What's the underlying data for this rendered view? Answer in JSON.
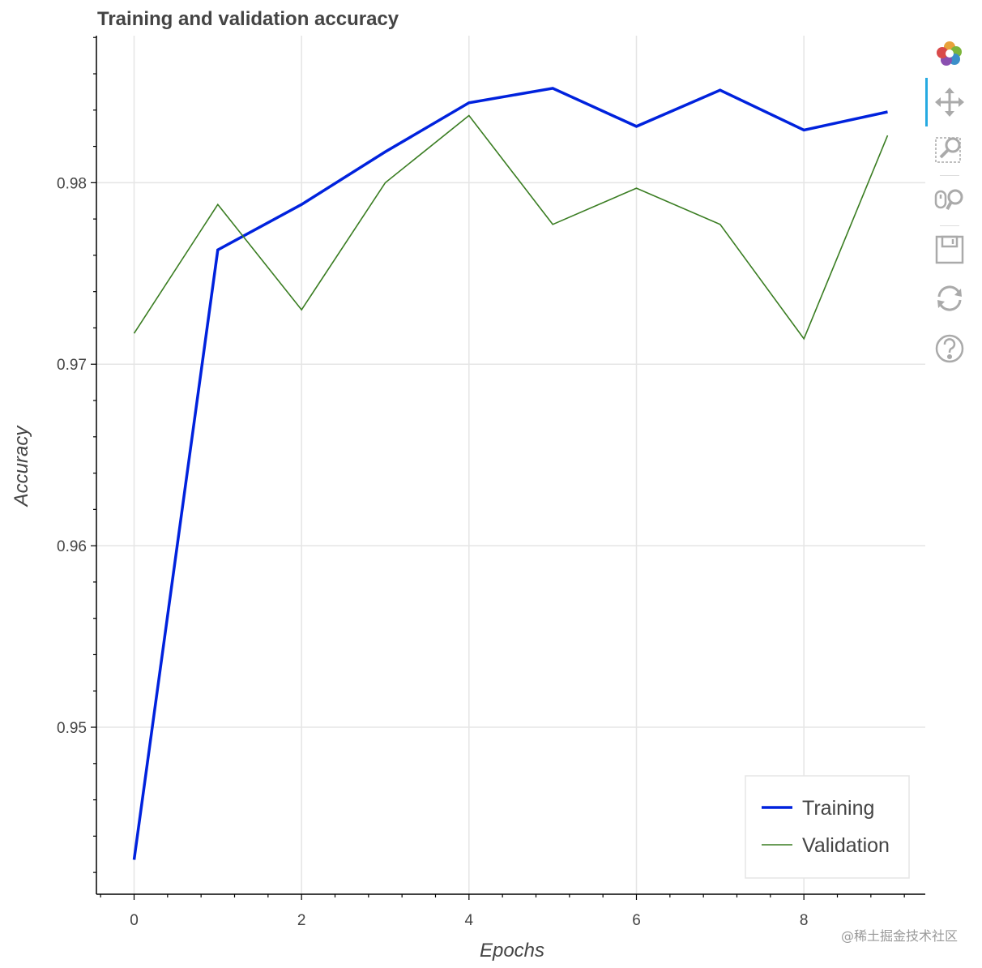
{
  "chart_data": {
    "type": "line",
    "title": "Training and validation accuracy",
    "xlabel": "Epochs",
    "ylabel": "Accuracy",
    "x": [
      0,
      1,
      2,
      3,
      4,
      5,
      6,
      7,
      8,
      9
    ],
    "xlim": [
      -0.45,
      9.45
    ],
    "ylim": [
      0.9408,
      0.9881
    ],
    "x_ticks": [
      0,
      2,
      4,
      6,
      8
    ],
    "x_tick_labels": [
      "0",
      "2",
      "4",
      "6",
      "8"
    ],
    "y_ticks": [
      0.95,
      0.96,
      0.97,
      0.98
    ],
    "y_tick_labels": [
      "0.95",
      "0.96",
      "0.97",
      "0.98"
    ],
    "grid": true,
    "legend_position": "bottom-right",
    "series": [
      {
        "name": "Training",
        "color": "#0022dd",
        "line_width": "thick",
        "values": [
          0.9427,
          0.9763,
          0.9788,
          0.9817,
          0.9844,
          0.9852,
          0.9831,
          0.9851,
          0.9829,
          0.9839
        ]
      },
      {
        "name": "Validation",
        "color": "#3a7d22",
        "line_width": "thin",
        "values": [
          0.9717,
          0.9788,
          0.973,
          0.98,
          0.9837,
          0.9777,
          0.9797,
          0.9777,
          0.9714,
          0.9826
        ]
      }
    ]
  },
  "toolbar": {
    "tools": [
      {
        "name": "bokeh-logo-icon",
        "interactable": true
      },
      {
        "name": "pan-icon",
        "interactable": true,
        "active": true
      },
      {
        "name": "box-zoom-icon",
        "interactable": true
      },
      {
        "name": "wheel-zoom-icon",
        "interactable": true
      },
      {
        "name": "save-icon",
        "interactable": true
      },
      {
        "name": "reset-icon",
        "interactable": true
      },
      {
        "name": "help-icon",
        "interactable": true
      }
    ]
  },
  "watermark": "@稀土掘金技术社区"
}
